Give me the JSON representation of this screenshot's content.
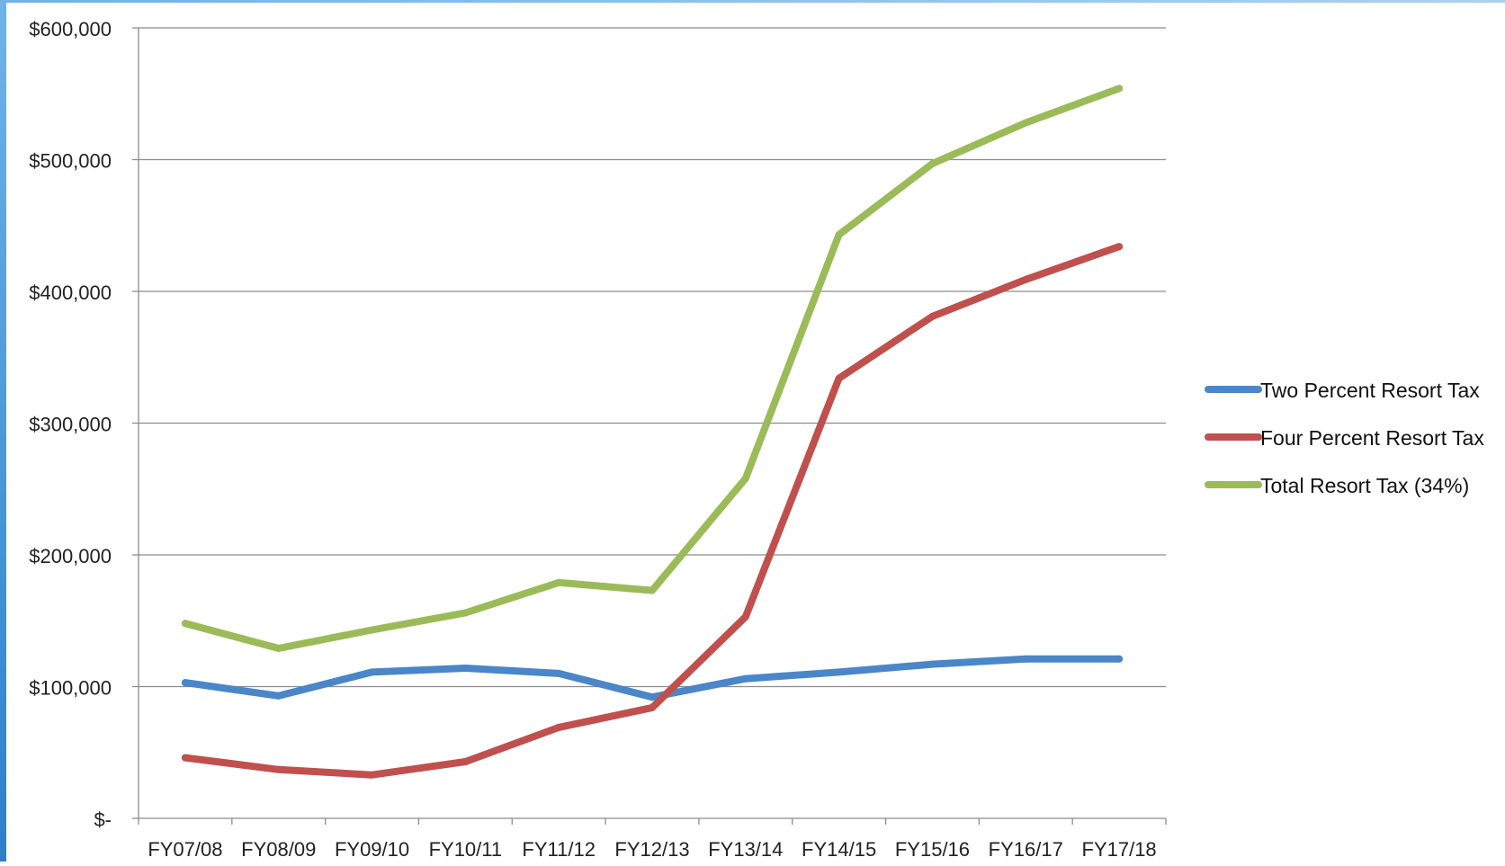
{
  "chart_data": {
    "type": "line",
    "title": "",
    "xlabel": "",
    "ylabel": "",
    "categories": [
      "FY07/08",
      "FY08/09",
      "FY09/10",
      "FY10/11",
      "FY11/12",
      "FY12/13",
      "FY13/14",
      "FY14/15",
      "FY15/16",
      "FY16/17",
      "FY17/18"
    ],
    "ylim": [
      0,
      600000
    ],
    "y_ticks": [
      0,
      100000,
      200000,
      300000,
      400000,
      500000,
      600000
    ],
    "y_tick_labels": [
      "$-",
      "$100,000",
      "$200,000",
      "$300,000",
      "$400,000",
      "$500,000",
      "$600,000"
    ],
    "grid": true,
    "legend_position": "right",
    "series": [
      {
        "name": "Two Percent Resort Tax",
        "color": "#4a86c8",
        "values": [
          103000,
          93000,
          111000,
          114000,
          110000,
          92000,
          106000,
          111000,
          117000,
          121000,
          121000
        ]
      },
      {
        "name": "Four Percent Resort Tax",
        "color": "#c0504d",
        "values": [
          46000,
          37000,
          33000,
          43000,
          69000,
          84000,
          153000,
          334000,
          381000,
          409000,
          434000
        ]
      },
      {
        "name": "Total Resort Tax (34%)",
        "color": "#9bbb59",
        "values": [
          148000,
          129000,
          143000,
          156000,
          179000,
          173000,
          258000,
          443000,
          497000,
          528000,
          554000
        ]
      }
    ]
  }
}
